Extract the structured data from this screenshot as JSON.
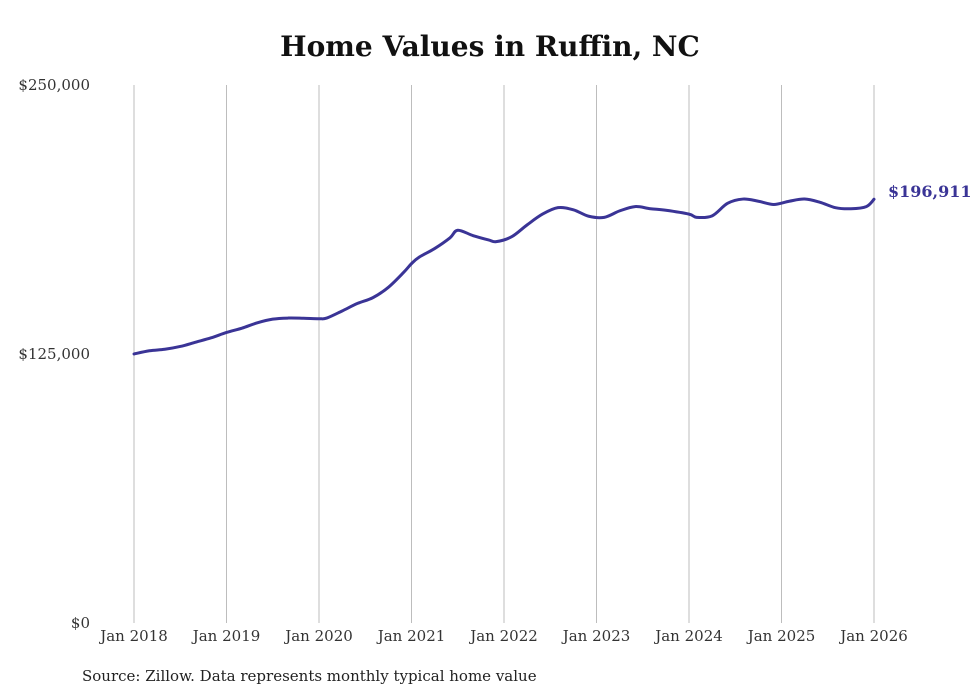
{
  "title": "Home Values in Ruffin, NC",
  "source": "Source: Zillow. Data represents monthly typical home value",
  "colors": {
    "line": "#3a3496",
    "grid": "#bdbdbd",
    "text": "#333333"
  },
  "chart_data": {
    "type": "line",
    "title": "Home Values in Ruffin, NC",
    "xlabel": "",
    "ylabel": "",
    "ylim": [
      0,
      250000
    ],
    "yticks": [
      0,
      125000,
      250000
    ],
    "ytick_labels": [
      "$0",
      "$125,000",
      "$250,000"
    ],
    "xlim": [
      "2018-01",
      "2026-01"
    ],
    "xticks": [
      "2018-01",
      "2019-01",
      "2020-01",
      "2021-01",
      "2022-01",
      "2023-01",
      "2024-01",
      "2025-01",
      "2026-01"
    ],
    "xtick_labels": [
      "Jan 2018",
      "Jan 2019",
      "Jan 2020",
      "Jan 2021",
      "Jan 2022",
      "Jan 2023",
      "Jan 2024",
      "Jan 2025",
      "Jan 2026"
    ],
    "grid": "vertical",
    "end_label": "$196,911",
    "series": [
      {
        "x": [
          "2018-01",
          "2018-03",
          "2018-05",
          "2018-07",
          "2018-09",
          "2018-11",
          "2019-01",
          "2019-03",
          "2019-05",
          "2019-07",
          "2019-09",
          "2019-11",
          "2020-01",
          "2020-02",
          "2020-04",
          "2020-06",
          "2020-08",
          "2020-10",
          "2020-12",
          "2021-01",
          "2021-02",
          "2021-04",
          "2021-06",
          "2021-07",
          "2021-09",
          "2021-11",
          "2021-12",
          "2022-02",
          "2022-04",
          "2022-06",
          "2022-08",
          "2022-10",
          "2022-12",
          "2023-02",
          "2023-04",
          "2023-06",
          "2023-08",
          "2023-10",
          "2024-01",
          "2024-02",
          "2024-04",
          "2024-06",
          "2024-08",
          "2024-10",
          "2024-12",
          "2025-02",
          "2025-04",
          "2025-06",
          "2025-08",
          "2025-10",
          "2025-12",
          "2026-01"
        ],
        "values": [
          125000,
          126500,
          127200,
          128500,
          130500,
          132500,
          135000,
          137000,
          139500,
          141200,
          141700,
          141600,
          141400,
          141700,
          145000,
          148500,
          151200,
          156000,
          163000,
          167000,
          170000,
          174000,
          179000,
          182500,
          180000,
          178000,
          177200,
          179500,
          185000,
          190000,
          193000,
          192000,
          189000,
          188500,
          191500,
          193500,
          192500,
          191800,
          190000,
          188500,
          189200,
          195000,
          197000,
          196000,
          194500,
          196000,
          197000,
          195500,
          193000,
          192500,
          193500,
          196911
        ]
      }
    ]
  }
}
